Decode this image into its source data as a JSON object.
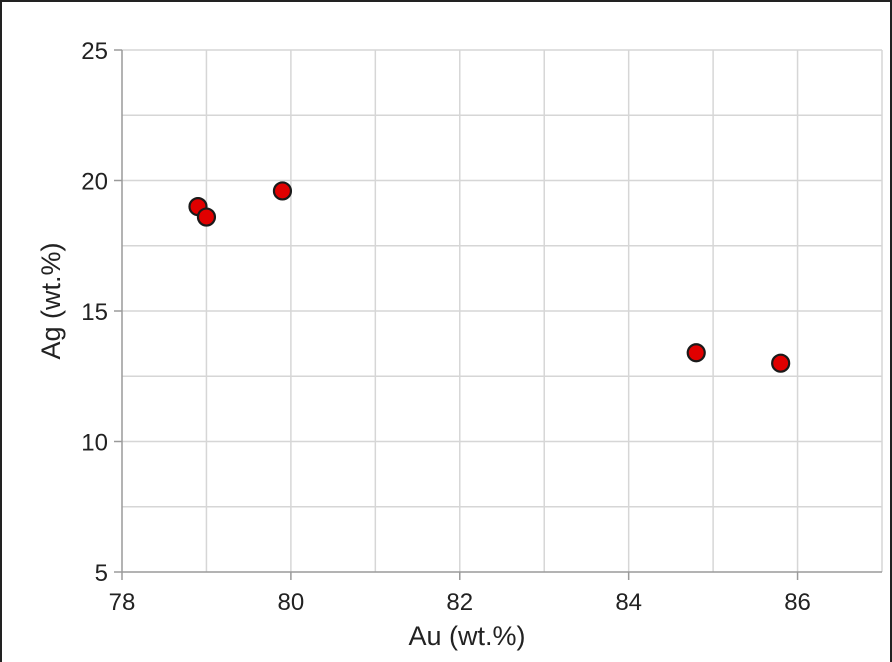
{
  "chart_data": {
    "type": "scatter",
    "title": "",
    "xlabel": "Au (wt.%)",
    "ylabel": "Ag (wt.%)",
    "xlim": [
      78,
      87
    ],
    "ylim": [
      5,
      25
    ],
    "xticks": [
      78,
      80,
      82,
      84,
      86
    ],
    "yticks": [
      5,
      10,
      15,
      20,
      25
    ],
    "grid": true,
    "legend": "none",
    "marker_color": "#e00000",
    "series": [
      {
        "points": [
          {
            "x": 78.9,
            "y": 19.0
          },
          {
            "x": 79.0,
            "y": 18.6
          },
          {
            "x": 79.9,
            "y": 19.6
          },
          {
            "x": 84.8,
            "y": 13.4
          },
          {
            "x": 85.8,
            "y": 13.0
          }
        ]
      }
    ]
  }
}
